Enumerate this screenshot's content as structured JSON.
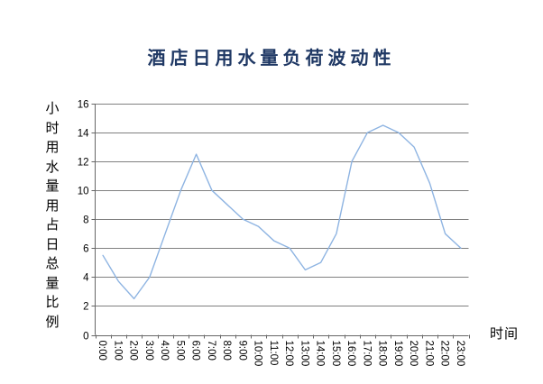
{
  "chart_data": {
    "type": "line",
    "title": "酒店日用水量负荷波动性",
    "ylabel": "小时用水量用占日总量比例",
    "xlabel": "时间",
    "categories": [
      "0:00",
      "1:00",
      "2:00",
      "3:00",
      "4:00",
      "5:00",
      "6:00",
      "7:00",
      "8:00",
      "9:00",
      "10:00",
      "11:00",
      "12:00",
      "13:00",
      "14:00",
      "15:00",
      "16:00",
      "17:00",
      "18:00",
      "19:00",
      "20:00",
      "21:00",
      "22:00",
      "23:00"
    ],
    "values": [
      5.5,
      3.7,
      2.5,
      4,
      7,
      10,
      12.5,
      10,
      9,
      8,
      7.5,
      6.5,
      6,
      4.5,
      5,
      7,
      12,
      14,
      14.5,
      14,
      13,
      10.5,
      7,
      6
    ],
    "ylim": [
      0,
      16
    ],
    "yticks": [
      0,
      2,
      4,
      6,
      8,
      10,
      12,
      14,
      16
    ],
    "grid": true,
    "legend": false,
    "colors": {
      "line": "#8EB4E2",
      "grid": "#808080",
      "axis": "#666666",
      "title": "#1F3864",
      "text": "#000000"
    }
  }
}
